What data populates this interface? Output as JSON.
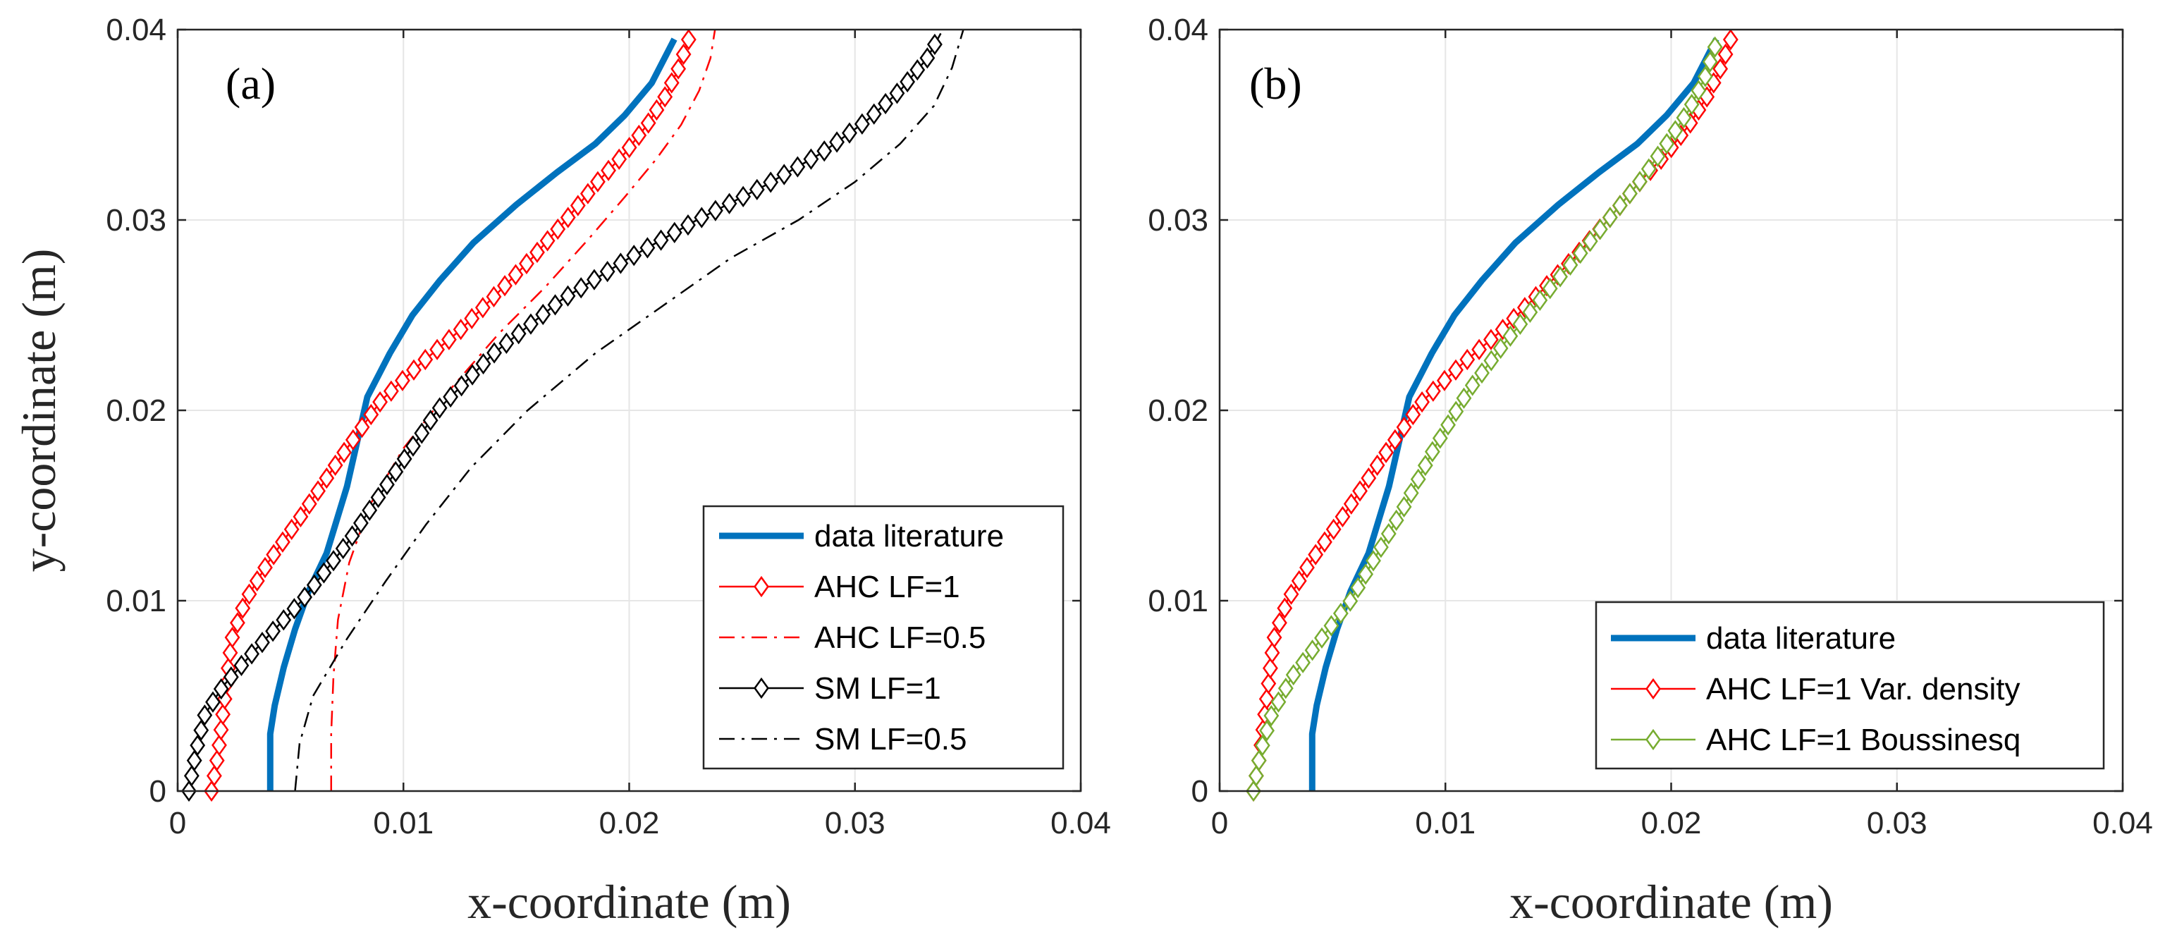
{
  "chart_data": [
    {
      "type": "line",
      "panel_label": "(a)",
      "xlabel": "x-coordinate (m)",
      "ylabel": "y-coordinate (m)",
      "xlim": [
        0,
        0.04
      ],
      "ylim": [
        0,
        0.04
      ],
      "xticks": [
        "0",
        "0.01",
        "0.02",
        "0.03",
        "0.04"
      ],
      "yticks": [
        "0",
        "0.01",
        "0.02",
        "0.03",
        "0.04"
      ],
      "grid": true,
      "legend_position": "bottom-right",
      "series": [
        {
          "name": "data literature",
          "color": "#0072BD",
          "style": "solid-thick",
          "x": [
            0.0041,
            0.0041,
            0.0043,
            0.0047,
            0.0052,
            0.0058,
            0.0066,
            0.0075,
            0.0084,
            0.0094,
            0.0104,
            0.0116,
            0.0131,
            0.015,
            0.0168,
            0.0185,
            0.0198,
            0.021,
            0.022
          ],
          "y": [
            0,
            0.003,
            0.0045,
            0.0065,
            0.0085,
            0.0105,
            0.0125,
            0.016,
            0.0207,
            0.023,
            0.025,
            0.0268,
            0.0288,
            0.0308,
            0.0325,
            0.034,
            0.0355,
            0.0372,
            0.0395
          ]
        },
        {
          "name": "AHC LF=1",
          "color": "#FF0000",
          "style": "solid-diamond",
          "x": [
            0.0015,
            0.0018,
            0.002,
            0.0022,
            0.0024,
            0.003,
            0.004,
            0.0055,
            0.0072,
            0.009,
            0.0108,
            0.0125,
            0.0142,
            0.0157,
            0.0172,
            0.0186,
            0.0198,
            0.0208,
            0.0216,
            0.0222,
            0.0227
          ],
          "y": [
            0,
            0.002,
            0.004,
            0.006,
            0.008,
            0.01,
            0.012,
            0.0145,
            0.0175,
            0.0205,
            0.0225,
            0.0242,
            0.0262,
            0.028,
            0.03,
            0.032,
            0.0335,
            0.035,
            0.0365,
            0.038,
            0.0397
          ]
        },
        {
          "name": "AHC LF=0.5",
          "color": "#FF0000",
          "style": "dashdot",
          "x": [
            0.0068,
            0.0068,
            0.0069,
            0.0071,
            0.0076,
            0.0085,
            0.01,
            0.012,
            0.0142,
            0.0163,
            0.0182,
            0.0198,
            0.0212,
            0.0223,
            0.0231,
            0.0236,
            0.0238
          ],
          "y": [
            0,
            0.003,
            0.006,
            0.009,
            0.012,
            0.015,
            0.018,
            0.021,
            0.024,
            0.0265,
            0.029,
            0.0312,
            0.0332,
            0.035,
            0.0368,
            0.0385,
            0.04
          ]
        },
        {
          "name": "SM LF=1",
          "color": "#000000",
          "style": "solid-diamond",
          "x": [
            0.0005,
            0.0008,
            0.0012,
            0.002,
            0.0035,
            0.0055,
            0.0075,
            0.0095,
            0.0115,
            0.014,
            0.017,
            0.02,
            0.023,
            0.026,
            0.0285,
            0.0305,
            0.032,
            0.0332,
            0.0338
          ],
          "y": [
            0,
            0.002,
            0.004,
            0.0055,
            0.0075,
            0.01,
            0.013,
            0.0165,
            0.02,
            0.023,
            0.0258,
            0.028,
            0.03,
            0.0318,
            0.0335,
            0.0352,
            0.0368,
            0.0385,
            0.0398
          ]
        },
        {
          "name": "SM LF=0.5",
          "color": "#000000",
          "style": "dashdot",
          "x": [
            0.0052,
            0.0054,
            0.006,
            0.0075,
            0.0092,
            0.011,
            0.013,
            0.0155,
            0.0185,
            0.0215,
            0.0245,
            0.0275,
            0.03,
            0.032,
            0.0335,
            0.0343,
            0.0348
          ],
          "y": [
            0,
            0.0025,
            0.005,
            0.008,
            0.011,
            0.014,
            0.017,
            0.02,
            0.023,
            0.0255,
            0.028,
            0.03,
            0.032,
            0.034,
            0.036,
            0.038,
            0.04
          ]
        }
      ]
    },
    {
      "type": "line",
      "panel_label": "(b)",
      "xlabel": "x-coordinate (m)",
      "ylabel": "",
      "xlim": [
        0,
        0.04
      ],
      "ylim": [
        0,
        0.04
      ],
      "xticks": [
        "0",
        "0.01",
        "0.02",
        "0.03",
        "0.04"
      ],
      "yticks": [
        "0",
        "0.01",
        "0.02",
        "0.03",
        "0.04"
      ],
      "grid": true,
      "legend_position": "bottom-right",
      "series": [
        {
          "name": "data literature",
          "color": "#0072BD",
          "style": "solid-thick",
          "x": [
            0.0041,
            0.0041,
            0.0043,
            0.0047,
            0.0052,
            0.0058,
            0.0066,
            0.0075,
            0.0084,
            0.0094,
            0.0104,
            0.0116,
            0.0131,
            0.015,
            0.0168,
            0.0185,
            0.0198,
            0.021,
            0.022
          ],
          "y": [
            0,
            0.003,
            0.0045,
            0.0065,
            0.0085,
            0.0105,
            0.0125,
            0.016,
            0.0207,
            0.023,
            0.025,
            0.0268,
            0.0288,
            0.0308,
            0.0325,
            0.034,
            0.0355,
            0.0372,
            0.0395
          ]
        },
        {
          "name": "AHC LF=1 Var. density",
          "color": "#FF0000",
          "style": "solid-diamond",
          "x": [
            0.0015,
            0.0018,
            0.002,
            0.0022,
            0.0024,
            0.003,
            0.004,
            0.0055,
            0.0072,
            0.009,
            0.0108,
            0.0125,
            0.0142,
            0.0157,
            0.0172,
            0.0186,
            0.0198,
            0.0208,
            0.0216,
            0.0222,
            0.0227
          ],
          "y": [
            0,
            0.002,
            0.004,
            0.006,
            0.008,
            0.01,
            0.012,
            0.0145,
            0.0175,
            0.0205,
            0.0225,
            0.0242,
            0.0262,
            0.028,
            0.03,
            0.032,
            0.0335,
            0.035,
            0.0365,
            0.038,
            0.0397
          ]
        },
        {
          "name": "AHC LF=1 Boussinesq",
          "color": "#77AC30",
          "style": "solid-diamond",
          "x": [
            0.0015,
            0.0018,
            0.0023,
            0.0032,
            0.0045,
            0.0058,
            0.007,
            0.0082,
            0.0095,
            0.011,
            0.0126,
            0.0142,
            0.0158,
            0.0172,
            0.0186,
            0.0198,
            0.0208,
            0.0215,
            0.022
          ],
          "y": [
            0,
            0.002,
            0.004,
            0.006,
            0.008,
            0.01,
            0.0125,
            0.015,
            0.018,
            0.021,
            0.0235,
            0.0258,
            0.028,
            0.03,
            0.032,
            0.034,
            0.0358,
            0.0375,
            0.0393
          ]
        }
      ]
    }
  ]
}
